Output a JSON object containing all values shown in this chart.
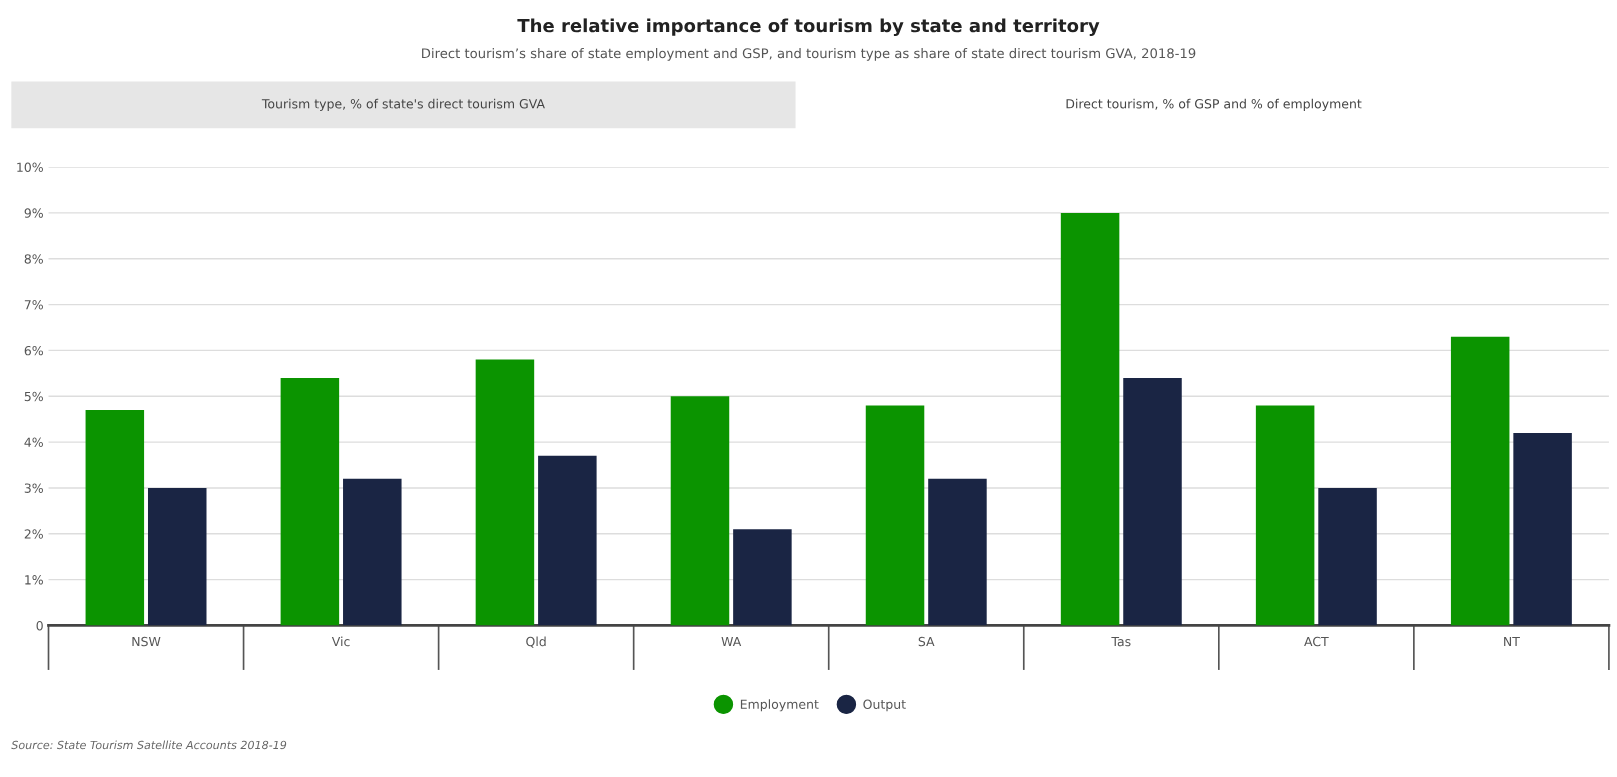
{
  "chart_data": {
    "type": "bar",
    "title": "The relative importance of tourism by state and territory",
    "subtitle": "Direct tourism’s share of state employment and GSP, and tourism type as share of state direct tourism GVA, 2018-19",
    "categories": [
      "NSW",
      "Vic",
      "Qld",
      "WA",
      "SA",
      "Tas",
      "ACT",
      "NT"
    ],
    "series": [
      {
        "name": "Employment",
        "color": "#0b9400",
        "values": [
          4.7,
          5.4,
          5.8,
          5.0,
          4.8,
          9.0,
          4.8,
          6.3
        ]
      },
      {
        "name": "Output",
        "color": "#1a2544",
        "values": [
          3.0,
          3.2,
          3.7,
          2.1,
          3.2,
          5.4,
          3.0,
          4.2
        ]
      }
    ],
    "ylim": [
      0,
      10
    ],
    "yticks": [
      {
        "value": 0,
        "label": "0"
      },
      {
        "value": 1,
        "label": "1%"
      },
      {
        "value": 2,
        "label": "2%"
      },
      {
        "value": 3,
        "label": "3%"
      },
      {
        "value": 4,
        "label": "4%"
      },
      {
        "value": 5,
        "label": "5%"
      },
      {
        "value": 6,
        "label": "6%"
      },
      {
        "value": 7,
        "label": "7%"
      },
      {
        "value": 8,
        "label": "8%"
      },
      {
        "value": 9,
        "label": "9%"
      },
      {
        "value": 10,
        "label": "10%"
      }
    ],
    "grid": "y",
    "legend": "bottom",
    "marker": "circle",
    "annotations": [
      "Tourism type, % of state's direct tourism GVA",
      "Direct tourism, % of GSP and % of employment",
      "Source: State Tourism Satellite Accounts 2018-19"
    ]
  }
}
